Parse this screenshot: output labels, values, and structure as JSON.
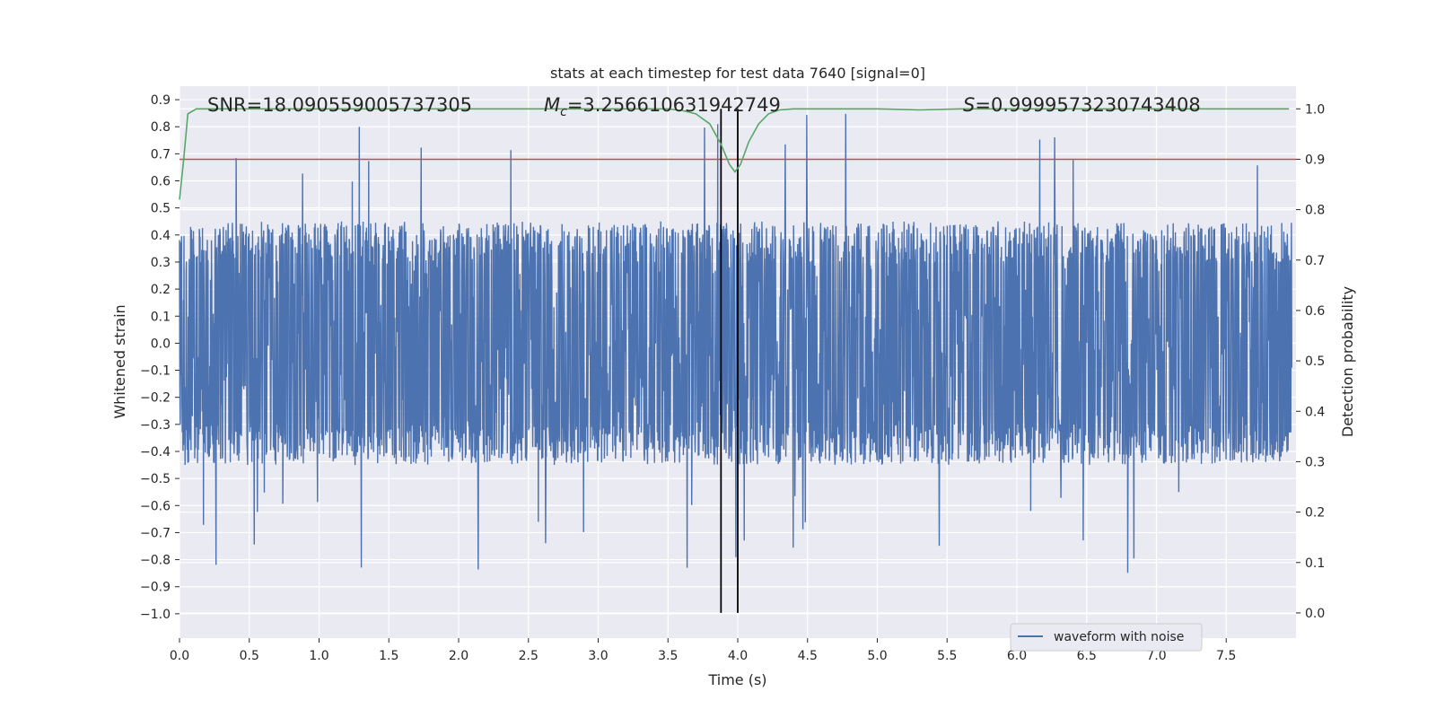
{
  "chart_data": {
    "type": "line",
    "title": "stats at each timestep for test data 7640 [signal=0]",
    "xlabel": "Time (s)",
    "ylabel_left": "Whitened strain",
    "ylabel_right": "Detection probability",
    "xlim": [
      0.0,
      8.0
    ],
    "ylim_left": [
      -1.09,
      0.95
    ],
    "ylim_right": [
      -0.05,
      1.045
    ],
    "x_ticks": [
      "0.0",
      "0.5",
      "1.0",
      "1.5",
      "2.0",
      "2.5",
      "3.0",
      "3.5",
      "4.0",
      "4.5",
      "5.0",
      "5.5",
      "6.0",
      "6.5",
      "7.0",
      "7.5"
    ],
    "y_left_ticks": [
      "0.9",
      "0.8",
      "0.7",
      "0.6",
      "0.5",
      "0.4",
      "0.3",
      "0.2",
      "0.1",
      "0.0",
      "−0.1",
      "−0.2",
      "−0.3",
      "−0.4",
      "−0.5",
      "−0.6",
      "−0.7",
      "−0.8",
      "−0.9",
      "−1.0"
    ],
    "y_right_ticks": [
      "1.0",
      "0.9",
      "0.8",
      "0.7",
      "0.6",
      "0.5",
      "0.4",
      "0.3",
      "0.2",
      "0.1",
      "0.0"
    ],
    "grid": true,
    "legend_position": "lower-right",
    "annotations": {
      "snr_label": "SNR=18.090559005737305",
      "mc_symbol": "M",
      "mc_subscript": "c",
      "mc_value": "=3.256610631942749",
      "s_symbol": "S",
      "s_value": "=0.9999573230743408"
    },
    "series": [
      {
        "name": "waveform with noise",
        "axis": "left",
        "color": "#4c72b0",
        "kind": "noise-strain",
        "envelope_abs": 0.45,
        "peaks_max": 0.86,
        "troughs_min": -1.0
      },
      {
        "axis": "right",
        "color": "#55a868",
        "x": [
          0.0,
          0.03,
          0.06,
          0.12,
          0.5,
          1.0,
          2.0,
          3.0,
          3.5,
          3.6,
          3.7,
          3.8,
          3.88,
          3.94,
          3.98,
          4.02,
          4.08,
          4.15,
          4.22,
          4.3,
          4.4,
          5.0,
          5.3,
          5.6,
          6.0,
          7.0,
          7.95
        ],
        "y": [
          0.82,
          0.9,
          0.99,
          1.0,
          1.0,
          1.0,
          1.0,
          1.0,
          1.0,
          0.997,
          0.99,
          0.97,
          0.93,
          0.89,
          0.875,
          0.89,
          0.935,
          0.97,
          0.99,
          0.998,
          1.0,
          1.0,
          0.998,
          1.0,
          1.0,
          1.0,
          1.0
        ]
      }
    ],
    "threshold": {
      "axis": "right",
      "value": 0.9,
      "color": "#c44e52"
    },
    "markers": {
      "x": [
        3.88,
        4.0
      ],
      "color": "#000000"
    }
  }
}
